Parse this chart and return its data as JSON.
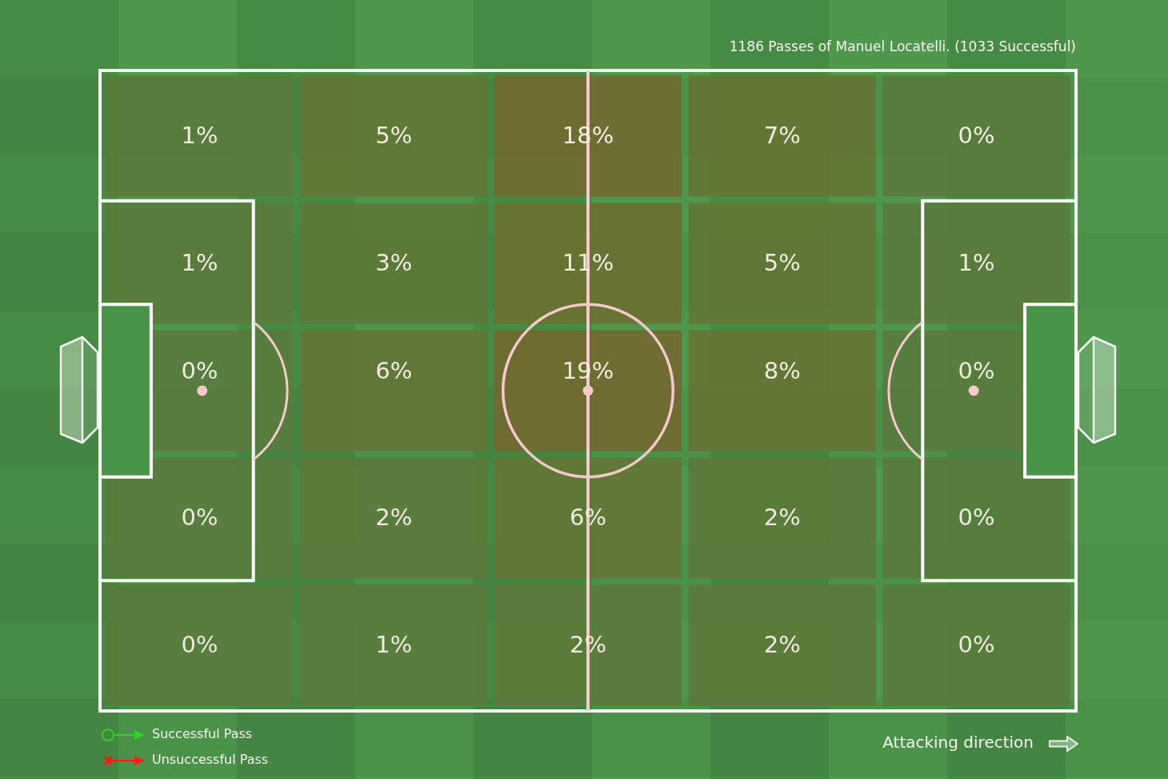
{
  "chart_data": {
    "type": "heatmap",
    "title": "1186 Passes of Manuel Locatelli. (1033 Successful)",
    "categories": [
      null,
      null,
      null,
      null,
      null
    ],
    "y_categories": [
      null,
      null,
      null,
      null,
      null
    ],
    "cells": [
      [
        1,
        5,
        18,
        7,
        0
      ],
      [
        1,
        3,
        11,
        5,
        1
      ],
      [
        0,
        6,
        19,
        8,
        0
      ],
      [
        0,
        2,
        6,
        2,
        0
      ],
      [
        0,
        1,
        2,
        2,
        0
      ]
    ],
    "cell_labels": [
      [
        "1%",
        "5%",
        "18%",
        "7%",
        "0%"
      ],
      [
        "1%",
        "3%",
        "11%",
        "5%",
        "1%"
      ],
      [
        "0%",
        "6%",
        "19%",
        "8%",
        "0%"
      ],
      [
        "0%",
        "2%",
        "6%",
        "2%",
        "0%"
      ],
      [
        "0%",
        "1%",
        "2%",
        "2%",
        "0%"
      ]
    ],
    "annotations": [
      "Successful Pass",
      "Unsuccessful Pass",
      "Attacking direction"
    ]
  }
}
